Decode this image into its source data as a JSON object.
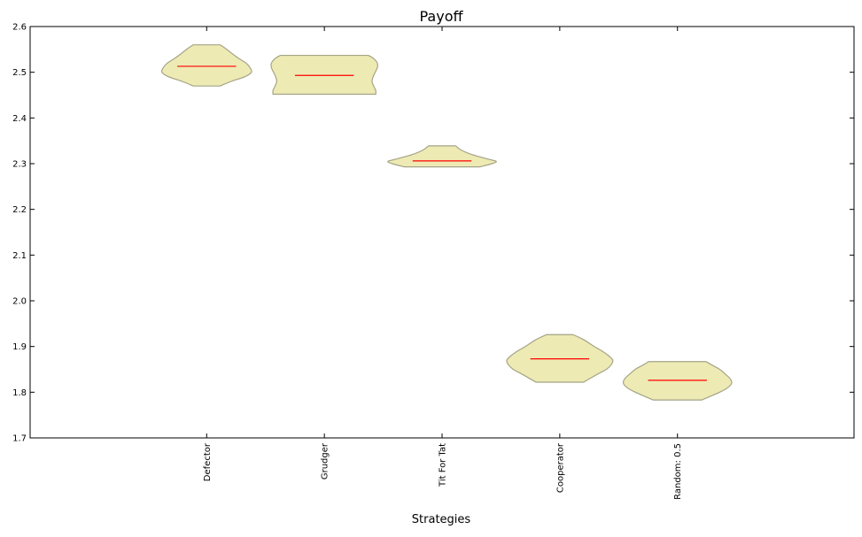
{
  "chart_data": {
    "type": "violin",
    "title": "Payoff",
    "xlabel": "Strategies",
    "ylabel": "",
    "ylim": [
      1.7,
      2.6
    ],
    "yticks": [
      "1.7",
      "1.8",
      "1.9",
      "2.0",
      "2.1",
      "2.2",
      "2.3",
      "2.4",
      "2.5",
      "2.6"
    ],
    "categories": [
      "Defector",
      "Grudger",
      "Tit For Tat",
      "Cooperator",
      "Random: 0.5"
    ],
    "violins": [
      {
        "name": "Defector",
        "min": 2.47,
        "max": 2.56,
        "median": 2.513,
        "max_half_width": 0.38,
        "profile": [
          [
            2.47,
            0.3
          ],
          [
            2.48,
            0.55
          ],
          [
            2.49,
            0.85
          ],
          [
            2.5,
            1.0
          ],
          [
            2.51,
            0.97
          ],
          [
            2.52,
            0.88
          ],
          [
            2.53,
            0.72
          ],
          [
            2.54,
            0.58
          ],
          [
            2.55,
            0.45
          ],
          [
            2.56,
            0.3
          ]
        ]
      },
      {
        "name": "Grudger",
        "min": 2.452,
        "max": 2.537,
        "median": 2.493,
        "max_half_width": 0.45,
        "profile": [
          [
            2.452,
            0.97
          ],
          [
            2.46,
            0.97
          ],
          [
            2.47,
            0.93
          ],
          [
            2.48,
            0.9
          ],
          [
            2.49,
            0.92
          ],
          [
            2.5,
            0.96
          ],
          [
            2.51,
            1.0
          ],
          [
            2.52,
            1.0
          ],
          [
            2.53,
            0.93
          ],
          [
            2.537,
            0.83
          ]
        ]
      },
      {
        "name": "Tit For Tat",
        "min": 2.293,
        "max": 2.339,
        "median": 2.306,
        "max_half_width": 0.46,
        "profile": [
          [
            2.293,
            0.7
          ],
          [
            2.3,
            0.92
          ],
          [
            2.305,
            1.0
          ],
          [
            2.31,
            0.85
          ],
          [
            2.32,
            0.55
          ],
          [
            2.33,
            0.35
          ],
          [
            2.339,
            0.25
          ]
        ]
      },
      {
        "name": "Cooperator",
        "min": 1.822,
        "max": 1.926,
        "median": 1.873,
        "max_half_width": 0.45,
        "profile": [
          [
            1.822,
            0.45
          ],
          [
            1.84,
            0.72
          ],
          [
            1.85,
            0.88
          ],
          [
            1.86,
            0.97
          ],
          [
            1.87,
            1.0
          ],
          [
            1.88,
            0.92
          ],
          [
            1.89,
            0.8
          ],
          [
            1.9,
            0.65
          ],
          [
            1.915,
            0.45
          ],
          [
            1.926,
            0.25
          ]
        ]
      },
      {
        "name": "Random: 0.5",
        "min": 1.783,
        "max": 1.867,
        "median": 1.826,
        "max_half_width": 0.46,
        "profile": [
          [
            1.783,
            0.45
          ],
          [
            1.8,
            0.78
          ],
          [
            1.81,
            0.93
          ],
          [
            1.82,
            1.0
          ],
          [
            1.83,
            0.97
          ],
          [
            1.84,
            0.88
          ],
          [
            1.85,
            0.78
          ],
          [
            1.86,
            0.63
          ],
          [
            1.867,
            0.53
          ]
        ]
      }
    ],
    "fill_color": "#eeeab4",
    "edge_color": "#a4a486",
    "median_color": "#ff0000",
    "grid": false
  }
}
